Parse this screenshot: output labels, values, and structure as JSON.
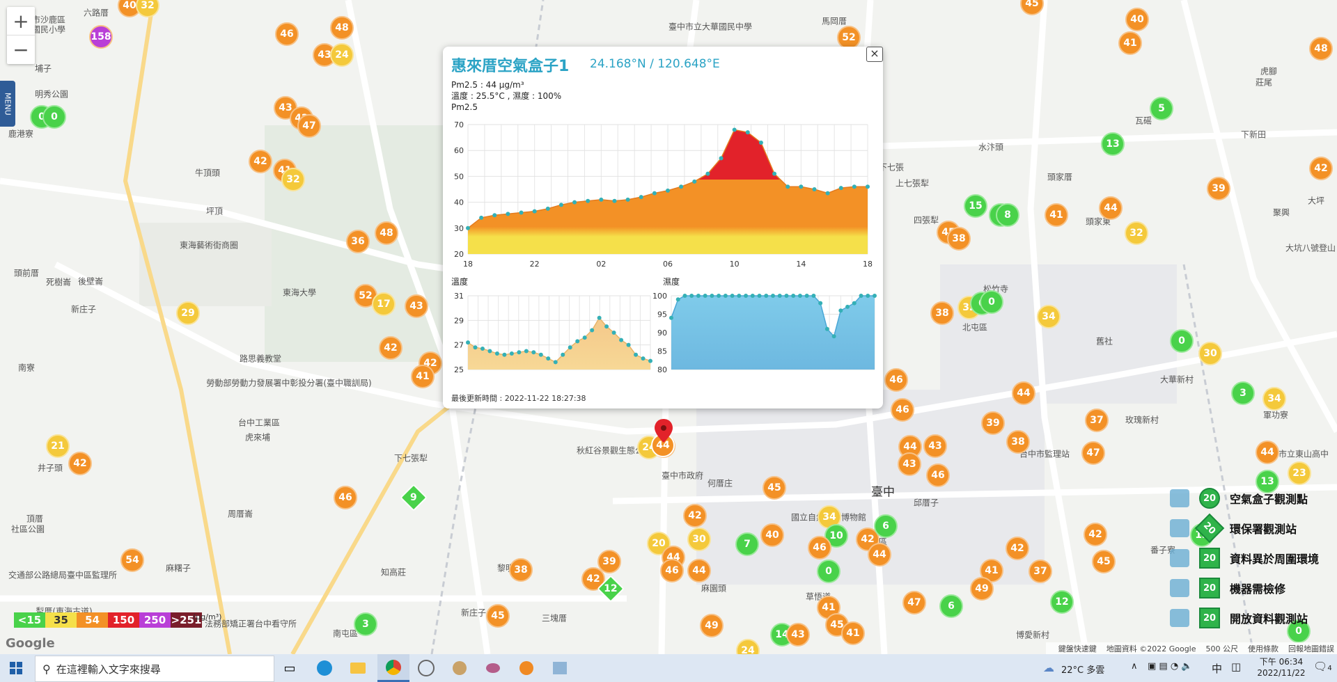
{
  "map": {
    "zoom_in": "+",
    "zoom_out": "−",
    "menu_label": "MENU",
    "places": [
      {
        "t": "六路厝",
        "x": 138,
        "y": 18
      },
      {
        "t": "市沙鹿區",
        "x": 70,
        "y": 28
      },
      {
        "t": "國民小學",
        "x": 70,
        "y": 42
      },
      {
        "t": "埔子",
        "x": 62,
        "y": 98
      },
      {
        "t": "明秀公園",
        "x": 74,
        "y": 135
      },
      {
        "t": "鹿港寮",
        "x": 30,
        "y": 192
      },
      {
        "t": "牛頂頭",
        "x": 298,
        "y": 248
      },
      {
        "t": "坪頂",
        "x": 308,
        "y": 303
      },
      {
        "t": "東海藝術街商圈",
        "x": 300,
        "y": 352
      },
      {
        "t": "頭前厝",
        "x": 38,
        "y": 392
      },
      {
        "t": "死樹崙",
        "x": 84,
        "y": 405
      },
      {
        "t": "後壁崙",
        "x": 130,
        "y": 404
      },
      {
        "t": "新庄子",
        "x": 120,
        "y": 444
      },
      {
        "t": "東海大學",
        "x": 430,
        "y": 420
      },
      {
        "t": "路思義教堂",
        "x": 374,
        "y": 515
      },
      {
        "t": "南寮",
        "x": 38,
        "y": 528
      },
      {
        "t": "勞動部勞動力發展署中彰投分署(臺中職訓局)",
        "x": 415,
        "y": 550
      },
      {
        "t": "台中工業區",
        "x": 372,
        "y": 607
      },
      {
        "t": "虎來埔",
        "x": 370,
        "y": 628
      },
      {
        "t": "下七張犁",
        "x": 590,
        "y": 658
      },
      {
        "t": "井子頭",
        "x": 72,
        "y": 672
      },
      {
        "t": "周厝崙",
        "x": 345,
        "y": 738
      },
      {
        "t": "頂厝",
        "x": 50,
        "y": 745
      },
      {
        "t": "社區公園",
        "x": 40,
        "y": 760
      },
      {
        "t": "麻糬子",
        "x": 256,
        "y": 816
      },
      {
        "t": "知高莊",
        "x": 565,
        "y": 822
      },
      {
        "t": "交通部公路總局臺中區監理所",
        "x": 90,
        "y": 826
      },
      {
        "t": "犁厝(東海古道)",
        "x": 92,
        "y": 878
      },
      {
        "t": "法務部矯正署台中看守所",
        "x": 360,
        "y": 896
      },
      {
        "t": "南屯區",
        "x": 496,
        "y": 910
      },
      {
        "t": "新庄子",
        "x": 680,
        "y": 880
      },
      {
        "t": "三塊厝",
        "x": 796,
        "y": 888
      },
      {
        "t": "黎明新村",
        "x": 738,
        "y": 816
      },
      {
        "t": "麻園頭",
        "x": 1025,
        "y": 845
      },
      {
        "t": "臺中市政府",
        "x": 980,
        "y": 683
      },
      {
        "t": "秋紅谷景觀生態公園",
        "x": 882,
        "y": 647
      },
      {
        "t": "何厝庄",
        "x": 1034,
        "y": 694
      },
      {
        "t": "國立自然科學博物館",
        "x": 1190,
        "y": 743
      },
      {
        "t": "草悟道",
        "x": 1175,
        "y": 857
      },
      {
        "t": "北區",
        "x": 1262,
        "y": 778
      },
      {
        "t": "邱厝子",
        "x": 1330,
        "y": 722
      },
      {
        "t": "臺中",
        "x": 1268,
        "y": 705
      },
      {
        "t": "北屯區",
        "x": 1400,
        "y": 470
      },
      {
        "t": "松竹寺",
        "x": 1430,
        "y": 415
      },
      {
        "t": "四張犁",
        "x": 1330,
        "y": 316
      },
      {
        "t": "上七張犁",
        "x": 1310,
        "y": 263
      },
      {
        "t": "頭家厝",
        "x": 1522,
        "y": 254
      },
      {
        "t": "水汴頭",
        "x": 1423,
        "y": 211
      },
      {
        "t": "頭家東",
        "x": 1577,
        "y": 318
      },
      {
        "t": "舊社",
        "x": 1586,
        "y": 490
      },
      {
        "t": "大華新村",
        "x": 1690,
        "y": 545
      },
      {
        "t": "玫瑰新村",
        "x": 1640,
        "y": 603
      },
      {
        "t": "軍功寮",
        "x": 1832,
        "y": 596
      },
      {
        "t": "下七張",
        "x": 1280,
        "y": 240
      },
      {
        "t": "瓦磘",
        "x": 1642,
        "y": 173
      },
      {
        "t": "下新田",
        "x": 1800,
        "y": 193
      },
      {
        "t": "聚興",
        "x": 1840,
        "y": 305
      },
      {
        "t": "大坪",
        "x": 1890,
        "y": 288
      },
      {
        "t": "莊尾",
        "x": 1815,
        "y": 118
      },
      {
        "t": "馬岡厝",
        "x": 1198,
        "y": 30
      },
      {
        "t": "番子寮",
        "x": 1670,
        "y": 790
      },
      {
        "t": "博愛新村",
        "x": 1483,
        "y": 912
      },
      {
        "t": "虎腳",
        "x": 1822,
        "y": 102
      },
      {
        "t": "臺中市立大華國民中學",
        "x": 1020,
        "y": 38
      },
      {
        "t": "台中市立東山高中",
        "x": 1860,
        "y": 652
      },
      {
        "t": "大坑八號登山",
        "x": 1882,
        "y": 356
      },
      {
        "t": "台中市監理站",
        "x": 1500,
        "y": 652
      }
    ],
    "markers": [
      {
        "v": "40",
        "c": "#f39126",
        "x": 186,
        "y": 8
      },
      {
        "v": "32",
        "c": "#f4c93b",
        "x": 212,
        "y": 8
      },
      {
        "v": "158",
        "c": "#b93fd7",
        "x": 145,
        "y": 53
      },
      {
        "v": "46",
        "c": "#f39126",
        "x": 412,
        "y": 49
      },
      {
        "v": "48",
        "c": "#f39126",
        "x": 491,
        "y": 40
      },
      {
        "v": "43",
        "c": "#f39126",
        "x": 466,
        "y": 79
      },
      {
        "v": "24",
        "c": "#f4c93b",
        "x": 491,
        "y": 79
      },
      {
        "v": "0",
        "c": "#49d24a",
        "x": 60,
        "y": 168
      },
      {
        "v": "0",
        "c": "#49d24a",
        "x": 78,
        "y": 168
      },
      {
        "v": "43",
        "c": "#f39126",
        "x": 410,
        "y": 155
      },
      {
        "v": "42",
        "c": "#f39126",
        "x": 433,
        "y": 170
      },
      {
        "v": "47",
        "c": "#f39126",
        "x": 444,
        "y": 181
      },
      {
        "v": "42",
        "c": "#f39126",
        "x": 374,
        "y": 232
      },
      {
        "v": "41",
        "c": "#f39126",
        "x": 409,
        "y": 245
      },
      {
        "v": "32",
        "c": "#f4c93b",
        "x": 421,
        "y": 258
      },
      {
        "v": "36",
        "c": "#f39126",
        "x": 514,
        "y": 347
      },
      {
        "v": "48",
        "c": "#f39126",
        "x": 555,
        "y": 335
      },
      {
        "v": "29",
        "c": "#f4c93b",
        "x": 270,
        "y": 450
      },
      {
        "v": "52",
        "c": "#f39126",
        "x": 525,
        "y": 425
      },
      {
        "v": "17",
        "c": "#f4c93b",
        "x": 551,
        "y": 437
      },
      {
        "v": "43",
        "c": "#f39126",
        "x": 598,
        "y": 440
      },
      {
        "v": "42",
        "c": "#f39126",
        "x": 561,
        "y": 500
      },
      {
        "v": "42",
        "c": "#f39126",
        "x": 618,
        "y": 522
      },
      {
        "v": "41",
        "c": "#f39126",
        "x": 607,
        "y": 541
      },
      {
        "v": "21",
        "c": "#f4c93b",
        "x": 83,
        "y": 641
      },
      {
        "v": "42",
        "c": "#f39126",
        "x": 115,
        "y": 666
      },
      {
        "v": "46",
        "c": "#f39126",
        "x": 496,
        "y": 715
      },
      {
        "v": "54",
        "c": "#f39126",
        "x": 190,
        "y": 805
      },
      {
        "v": "3",
        "c": "#49d24a",
        "x": 525,
        "y": 897
      },
      {
        "v": "38",
        "c": "#f39126",
        "x": 748,
        "y": 819
      },
      {
        "v": "45",
        "c": "#f39126",
        "x": 715,
        "y": 885
      },
      {
        "v": "39",
        "c": "#f39126",
        "x": 875,
        "y": 807
      },
      {
        "v": "42",
        "c": "#f39126",
        "x": 852,
        "y": 832
      },
      {
        "v": "20",
        "c": "#f4c93b",
        "x": 946,
        "y": 781
      },
      {
        "v": "44",
        "c": "#f39126",
        "x": 967,
        "y": 801
      },
      {
        "v": "46",
        "c": "#f39126",
        "x": 965,
        "y": 820
      },
      {
        "v": "44",
        "c": "#f39126",
        "x": 1004,
        "y": 820
      },
      {
        "v": "42",
        "c": "#f39126",
        "x": 998,
        "y": 741
      },
      {
        "v": "30",
        "c": "#f4c93b",
        "x": 1004,
        "y": 775
      },
      {
        "v": "7",
        "c": "#49d24a",
        "x": 1073,
        "y": 782
      },
      {
        "v": "40",
        "c": "#f39126",
        "x": 1109,
        "y": 769
      },
      {
        "v": "45",
        "c": "#f39126",
        "x": 1112,
        "y": 701
      },
      {
        "v": "49",
        "c": "#f39126",
        "x": 1022,
        "y": 899
      },
      {
        "v": "24",
        "c": "#f4c93b",
        "x": 1074,
        "y": 935
      },
      {
        "v": "14",
        "c": "#49d24a",
        "x": 1123,
        "y": 912
      },
      {
        "v": "43",
        "c": "#f39126",
        "x": 1146,
        "y": 912
      },
      {
        "v": "41",
        "c": "#f39126",
        "x": 1190,
        "y": 873
      },
      {
        "v": "45",
        "c": "#f39126",
        "x": 1202,
        "y": 898
      },
      {
        "v": "41",
        "c": "#f39126",
        "x": 1225,
        "y": 910
      },
      {
        "v": "34",
        "c": "#f4c93b",
        "x": 1191,
        "y": 743
      },
      {
        "v": "10",
        "c": "#49d24a",
        "x": 1201,
        "y": 770
      },
      {
        "v": "46",
        "c": "#f39126",
        "x": 1177,
        "y": 787
      },
      {
        "v": "0",
        "c": "#49d24a",
        "x": 1190,
        "y": 821
      },
      {
        "v": "42",
        "c": "#f39126",
        "x": 1246,
        "y": 775
      },
      {
        "v": "6",
        "c": "#49d24a",
        "x": 1272,
        "y": 756
      },
      {
        "v": "44",
        "c": "#f39126",
        "x": 1263,
        "y": 797
      },
      {
        "v": "24",
        "c": "#f4c93b",
        "x": 932,
        "y": 643
      },
      {
        "v": "44",
        "c": "#f39126",
        "x": 953,
        "y": 641
      },
      {
        "v": "46",
        "c": "#f39126",
        "x": 1287,
        "y": 546
      },
      {
        "v": "46",
        "c": "#f39126",
        "x": 1296,
        "y": 589
      },
      {
        "v": "44",
        "c": "#f39126",
        "x": 1307,
        "y": 642
      },
      {
        "v": "43",
        "c": "#f39126",
        "x": 1343,
        "y": 641
      },
      {
        "v": "43",
        "c": "#f39126",
        "x": 1306,
        "y": 667
      },
      {
        "v": "46",
        "c": "#f39126",
        "x": 1347,
        "y": 683
      },
      {
        "v": "39",
        "c": "#f39126",
        "x": 1426,
        "y": 608
      },
      {
        "v": "38",
        "c": "#f39126",
        "x": 1462,
        "y": 635
      },
      {
        "v": "44",
        "c": "#f39126",
        "x": 1470,
        "y": 565
      },
      {
        "v": "37",
        "c": "#f39126",
        "x": 1575,
        "y": 604
      },
      {
        "v": "47",
        "c": "#f39126",
        "x": 1570,
        "y": 651
      },
      {
        "v": "44",
        "c": "#f39126",
        "x": 1820,
        "y": 650
      },
      {
        "v": "23",
        "c": "#f4c93b",
        "x": 1866,
        "y": 680
      },
      {
        "v": "13",
        "c": "#49d24a",
        "x": 1820,
        "y": 692
      },
      {
        "v": "3",
        "c": "#49d24a",
        "x": 1785,
        "y": 565
      },
      {
        "v": "34",
        "c": "#f4c93b",
        "x": 1830,
        "y": 573
      },
      {
        "v": "30",
        "c": "#f4c93b",
        "x": 1738,
        "y": 508
      },
      {
        "v": "0",
        "c": "#49d24a",
        "x": 1697,
        "y": 490
      },
      {
        "v": "38",
        "c": "#f39126",
        "x": 1353,
        "y": 450
      },
      {
        "v": "32",
        "c": "#f4c93b",
        "x": 1392,
        "y": 442
      },
      {
        "v": "0",
        "c": "#49d24a",
        "x": 1410,
        "y": 436
      },
      {
        "v": "0",
        "c": "#49d24a",
        "x": 1424,
        "y": 434
      },
      {
        "v": "34",
        "c": "#f4c93b",
        "x": 1506,
        "y": 455
      },
      {
        "v": "45",
        "c": "#f39126",
        "x": 1362,
        "y": 334
      },
      {
        "v": "38",
        "c": "#f39126",
        "x": 1377,
        "y": 343
      },
      {
        "v": "15",
        "c": "#49d24a",
        "x": 1401,
        "y": 296
      },
      {
        "v": "8",
        "c": "#49d24a",
        "x": 1437,
        "y": 309
      },
      {
        "v": "8",
        "c": "#49d24a",
        "x": 1447,
        "y": 309
      },
      {
        "v": "41",
        "c": "#f39126",
        "x": 1517,
        "y": 309
      },
      {
        "v": "44",
        "c": "#f39126",
        "x": 1595,
        "y": 299
      },
      {
        "v": "32",
        "c": "#f4c93b",
        "x": 1632,
        "y": 335
      },
      {
        "v": "13",
        "c": "#49d24a",
        "x": 1598,
        "y": 207
      },
      {
        "v": "5",
        "c": "#49d24a",
        "x": 1668,
        "y": 156
      },
      {
        "v": "40",
        "c": "#f39126",
        "x": 1633,
        "y": 28
      },
      {
        "v": "41",
        "c": "#f39126",
        "x": 1623,
        "y": 62
      },
      {
        "v": "45",
        "c": "#f39126",
        "x": 1482,
        "y": 5
      },
      {
        "v": "52",
        "c": "#f39126",
        "x": 1219,
        "y": 54
      },
      {
        "v": "39",
        "c": "#f39126",
        "x": 1750,
        "y": 271
      },
      {
        "v": "42",
        "c": "#f39126",
        "x": 1897,
        "y": 242
      },
      {
        "v": "48",
        "c": "#f39126",
        "x": 1897,
        "y": 70
      },
      {
        "v": "42",
        "c": "#f39126",
        "x": 1573,
        "y": 768
      },
      {
        "v": "45",
        "c": "#f39126",
        "x": 1585,
        "y": 807
      },
      {
        "v": "42",
        "c": "#f39126",
        "x": 1461,
        "y": 788
      },
      {
        "v": "37",
        "c": "#f39126",
        "x": 1494,
        "y": 821
      },
      {
        "v": "41",
        "c": "#f39126",
        "x": 1424,
        "y": 820
      },
      {
        "v": "49",
        "c": "#f39126",
        "x": 1410,
        "y": 846
      },
      {
        "v": "47",
        "c": "#f39126",
        "x": 1313,
        "y": 866
      },
      {
        "v": "6",
        "c": "#49d24a",
        "x": 1366,
        "y": 871
      },
      {
        "v": "12",
        "c": "#49d24a",
        "x": 1525,
        "y": 865
      },
      {
        "v": "0",
        "c": "#49d24a",
        "x": 1865,
        "y": 907
      },
      {
        "v": "13",
        "c": "#49d24a",
        "x": 1726,
        "y": 769
      }
    ],
    "diamonds": [
      {
        "v": "9",
        "c": "#49d24a",
        "x": 594,
        "y": 715
      },
      {
        "v": "12",
        "c": "#49d24a",
        "x": 877,
        "y": 846
      }
    ],
    "selected_marker": {
      "v": "44",
      "x": 952,
      "y": 640
    }
  },
  "popup": {
    "close": "×",
    "title": "惠來厝空氣盒子1",
    "coord": "24.168°N / 120.648°E",
    "pm25_line": "Pm2.5 : 44 μg/m³",
    "temp_line": "溫度 : 25.5°C , 濕度 : 100%",
    "chart1_title": "Pm2.5",
    "chart2_title": "溫度",
    "chart3_title": "濕度",
    "updated": "最後更新時間 : 2022-11-22 18:27:38"
  },
  "chart_data": [
    {
      "type": "area",
      "title": "Pm2.5",
      "x_ticks": [
        "18",
        "22",
        "02",
        "06",
        "10",
        "14",
        "18"
      ],
      "ylim": [
        20,
        70
      ],
      "y_ticks": [
        20,
        30,
        40,
        50,
        60,
        70
      ],
      "values": [
        30,
        34,
        35,
        35.5,
        36,
        36.5,
        37.5,
        39,
        40,
        40.5,
        41,
        40.5,
        41,
        42,
        43.5,
        44.5,
        46,
        48,
        51,
        57,
        68,
        67,
        63,
        51,
        46,
        46,
        45,
        43.5,
        45.5,
        46,
        46
      ]
    },
    {
      "type": "area",
      "title": "溫度",
      "ylim": [
        25,
        31
      ],
      "y_ticks": [
        25,
        27,
        29,
        31
      ],
      "values": [
        27.2,
        26.8,
        26.7,
        26.5,
        26.3,
        26.2,
        26.3,
        26.4,
        26.5,
        26.4,
        26.2,
        25.9,
        25.6,
        26.2,
        26.8,
        27.3,
        27.6,
        28.2,
        29.2,
        28.5,
        28.0,
        27.4,
        27.0,
        26.2,
        25.9,
        25.7
      ]
    },
    {
      "type": "area",
      "title": "濕度",
      "ylim": [
        80,
        100
      ],
      "y_ticks": [
        80,
        85,
        90,
        95,
        100
      ],
      "values": [
        94,
        99,
        100,
        100,
        100,
        100,
        100,
        100,
        100,
        100,
        100,
        100,
        100,
        100,
        100,
        100,
        100,
        100,
        100,
        100,
        100,
        100,
        98,
        91,
        89,
        96,
        97,
        98,
        100,
        100,
        100
      ]
    }
  ],
  "aq_legend": [
    {
      "t": "<15",
      "c": "#49d24a"
    },
    {
      "t": "35",
      "c": "#f5e04a"
    },
    {
      "t": "54",
      "c": "#f39126"
    },
    {
      "t": "150",
      "c": "#e2222a"
    },
    {
      "t": "250",
      "c": "#b93fd7"
    },
    {
      "t": ">251",
      "c": "#7a1e2a"
    }
  ],
  "aq_unit": "(μg/m³)",
  "google": "Google",
  "attribution": [
    "鍵盤快速鍵",
    "地圖資料 ©2022 Google",
    "500 公尺",
    "使用條款",
    "回報地圖錯誤"
  ],
  "key_legend": [
    {
      "t": "空氣盒子觀測點",
      "n": "20"
    },
    {
      "t": "環保署觀測站",
      "n": "20"
    },
    {
      "t": "資料異於周圍環境",
      "n": "20"
    },
    {
      "t": "機器需檢修",
      "n": "20"
    },
    {
      "t": "開放資料觀測站",
      "n": "20"
    }
  ],
  "taskbar": {
    "search_placeholder": "在這裡輸入文字來搜尋",
    "weather": "22°C 多雲",
    "ime": "中",
    "time": "下午 06:34",
    "date": "2022/11/22",
    "notif_count": "4"
  },
  "colors": {
    "orange": "#f39126",
    "yellow": "#f4c93b",
    "green": "#49d24a",
    "red": "#e2222a",
    "purple": "#b93fd7",
    "popup_title": "#2ba3c5"
  }
}
